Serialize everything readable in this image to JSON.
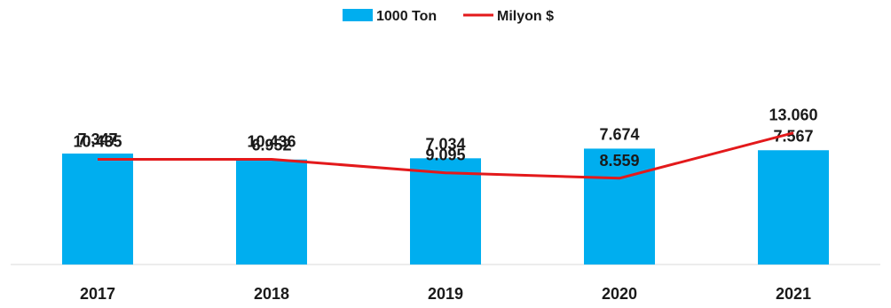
{
  "chart_data": {
    "type": "bar",
    "categories": [
      "2017",
      "2018",
      "2019",
      "2020",
      "2021"
    ],
    "series": [
      {
        "name": "1000 Ton",
        "type": "bar",
        "axis": "left",
        "values": [
          7347,
          6952,
          7034,
          7674,
          7567
        ],
        "labels": [
          "7.347",
          "6.952",
          "7.034",
          "7.674",
          "7.567"
        ],
        "color": "#00AEEF"
      },
      {
        "name": "Milyon $",
        "type": "line",
        "axis": "right",
        "values": [
          10435,
          10436,
          9095,
          8559,
          13060
        ],
        "labels": [
          "10.435",
          "10.436",
          "9.095",
          "8.559",
          "13.060"
        ],
        "color": "#E3191B"
      }
    ],
    "ylim_bars": [
      0,
      9000
    ],
    "ylim_line": [
      0,
      15000
    ],
    "legend": "top-center",
    "grid": false
  }
}
